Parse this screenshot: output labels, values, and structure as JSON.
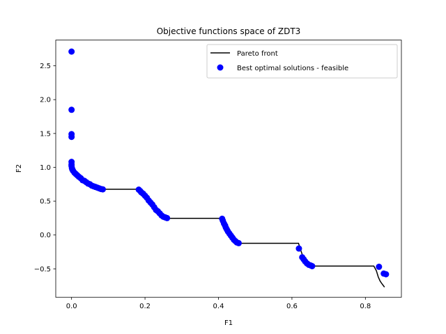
{
  "chart_data": {
    "type": "scatter",
    "title": "Objective functions space of ZDT3",
    "xlabel": "F1",
    "ylabel": "F2",
    "xlim": [
      -0.043,
      0.898
    ],
    "ylim": [
      -0.92,
      2.88
    ],
    "xticks": [
      0.0,
      0.2,
      0.4,
      0.6,
      0.8
    ],
    "xtick_labels": [
      "0.0",
      "0.2",
      "0.4",
      "0.6",
      "0.8"
    ],
    "yticks": [
      -0.5,
      0.0,
      0.5,
      1.0,
      1.5,
      2.0,
      2.5
    ],
    "ytick_labels": [
      "−0.5",
      "0.0",
      "0.5",
      "1.0",
      "1.5",
      "2.0",
      "2.5"
    ],
    "legend_position": "top-right",
    "grid": false,
    "series": [
      {
        "name": "Pareto front",
        "kind": "line",
        "color": "#000000",
        "points": [
          [
            0.0,
            1.0
          ],
          [
            0.005,
            0.93
          ],
          [
            0.01,
            0.9
          ],
          [
            0.02,
            0.855
          ],
          [
            0.03,
            0.81
          ],
          [
            0.04,
            0.775
          ],
          [
            0.05,
            0.745
          ],
          [
            0.06,
            0.72
          ],
          [
            0.07,
            0.7
          ],
          [
            0.08,
            0.685
          ],
          [
            0.083,
            0.676
          ],
          [
            0.183,
            0.676
          ],
          [
            0.19,
            0.65
          ],
          [
            0.2,
            0.59
          ],
          [
            0.21,
            0.53
          ],
          [
            0.22,
            0.46
          ],
          [
            0.23,
            0.39
          ],
          [
            0.24,
            0.33
          ],
          [
            0.25,
            0.28
          ],
          [
            0.257,
            0.246
          ],
          [
            0.41,
            0.246
          ],
          [
            0.415,
            0.2
          ],
          [
            0.42,
            0.12
          ],
          [
            0.43,
            0.04
          ],
          [
            0.44,
            -0.05
          ],
          [
            0.454,
            -0.123
          ],
          [
            0.618,
            -0.123
          ],
          [
            0.62,
            -0.16
          ],
          [
            0.625,
            -0.24
          ],
          [
            0.63,
            -0.32
          ],
          [
            0.64,
            -0.4
          ],
          [
            0.652,
            -0.459
          ],
          [
            0.823,
            -0.459
          ],
          [
            0.83,
            -0.53
          ],
          [
            0.835,
            -0.62
          ],
          [
            0.84,
            -0.68
          ],
          [
            0.845,
            -0.72
          ],
          [
            0.852,
            -0.77
          ]
        ]
      },
      {
        "name": "Best optimal solutions - feasible",
        "kind": "scatter",
        "color": "#0000ff",
        "points": [
          [
            0.0,
            2.71
          ],
          [
            0.0,
            1.85
          ],
          [
            0.0,
            1.49
          ],
          [
            0.0,
            1.45
          ],
          [
            0.0,
            1.08
          ],
          [
            0.0,
            1.04
          ],
          [
            0.0,
            1.02
          ],
          [
            0.001,
            0.99
          ],
          [
            0.002,
            0.97
          ],
          [
            0.004,
            0.95
          ],
          [
            0.008,
            0.92
          ],
          [
            0.012,
            0.9
          ],
          [
            0.016,
            0.88
          ],
          [
            0.02,
            0.86
          ],
          [
            0.025,
            0.84
          ],
          [
            0.03,
            0.81
          ],
          [
            0.035,
            0.8
          ],
          [
            0.04,
            0.78
          ],
          [
            0.045,
            0.76
          ],
          [
            0.05,
            0.75
          ],
          [
            0.055,
            0.73
          ],
          [
            0.06,
            0.72
          ],
          [
            0.065,
            0.71
          ],
          [
            0.07,
            0.7
          ],
          [
            0.075,
            0.69
          ],
          [
            0.08,
            0.68
          ],
          [
            0.085,
            0.675
          ],
          [
            0.183,
            0.67
          ],
          [
            0.187,
            0.65
          ],
          [
            0.19,
            0.63
          ],
          [
            0.195,
            0.61
          ],
          [
            0.2,
            0.58
          ],
          [
            0.205,
            0.55
          ],
          [
            0.21,
            0.51
          ],
          [
            0.215,
            0.48
          ],
          [
            0.22,
            0.45
          ],
          [
            0.225,
            0.41
          ],
          [
            0.23,
            0.37
          ],
          [
            0.235,
            0.35
          ],
          [
            0.24,
            0.32
          ],
          [
            0.245,
            0.29
          ],
          [
            0.25,
            0.27
          ],
          [
            0.255,
            0.26
          ],
          [
            0.26,
            0.25
          ],
          [
            0.41,
            0.24
          ],
          [
            0.412,
            0.21
          ],
          [
            0.415,
            0.17
          ],
          [
            0.418,
            0.14
          ],
          [
            0.42,
            0.11
          ],
          [
            0.423,
            0.08
          ],
          [
            0.426,
            0.05
          ],
          [
            0.43,
            0.02
          ],
          [
            0.434,
            -0.01
          ],
          [
            0.438,
            -0.04
          ],
          [
            0.442,
            -0.07
          ],
          [
            0.446,
            -0.09
          ],
          [
            0.45,
            -0.11
          ],
          [
            0.455,
            -0.12
          ],
          [
            0.619,
            -0.2
          ],
          [
            0.628,
            -0.33
          ],
          [
            0.632,
            -0.36
          ],
          [
            0.636,
            -0.39
          ],
          [
            0.641,
            -0.42
          ],
          [
            0.646,
            -0.44
          ],
          [
            0.651,
            -0.45
          ],
          [
            0.655,
            -0.46
          ],
          [
            0.837,
            -0.47
          ],
          [
            0.85,
            -0.57
          ],
          [
            0.856,
            -0.58
          ]
        ]
      }
    ]
  }
}
